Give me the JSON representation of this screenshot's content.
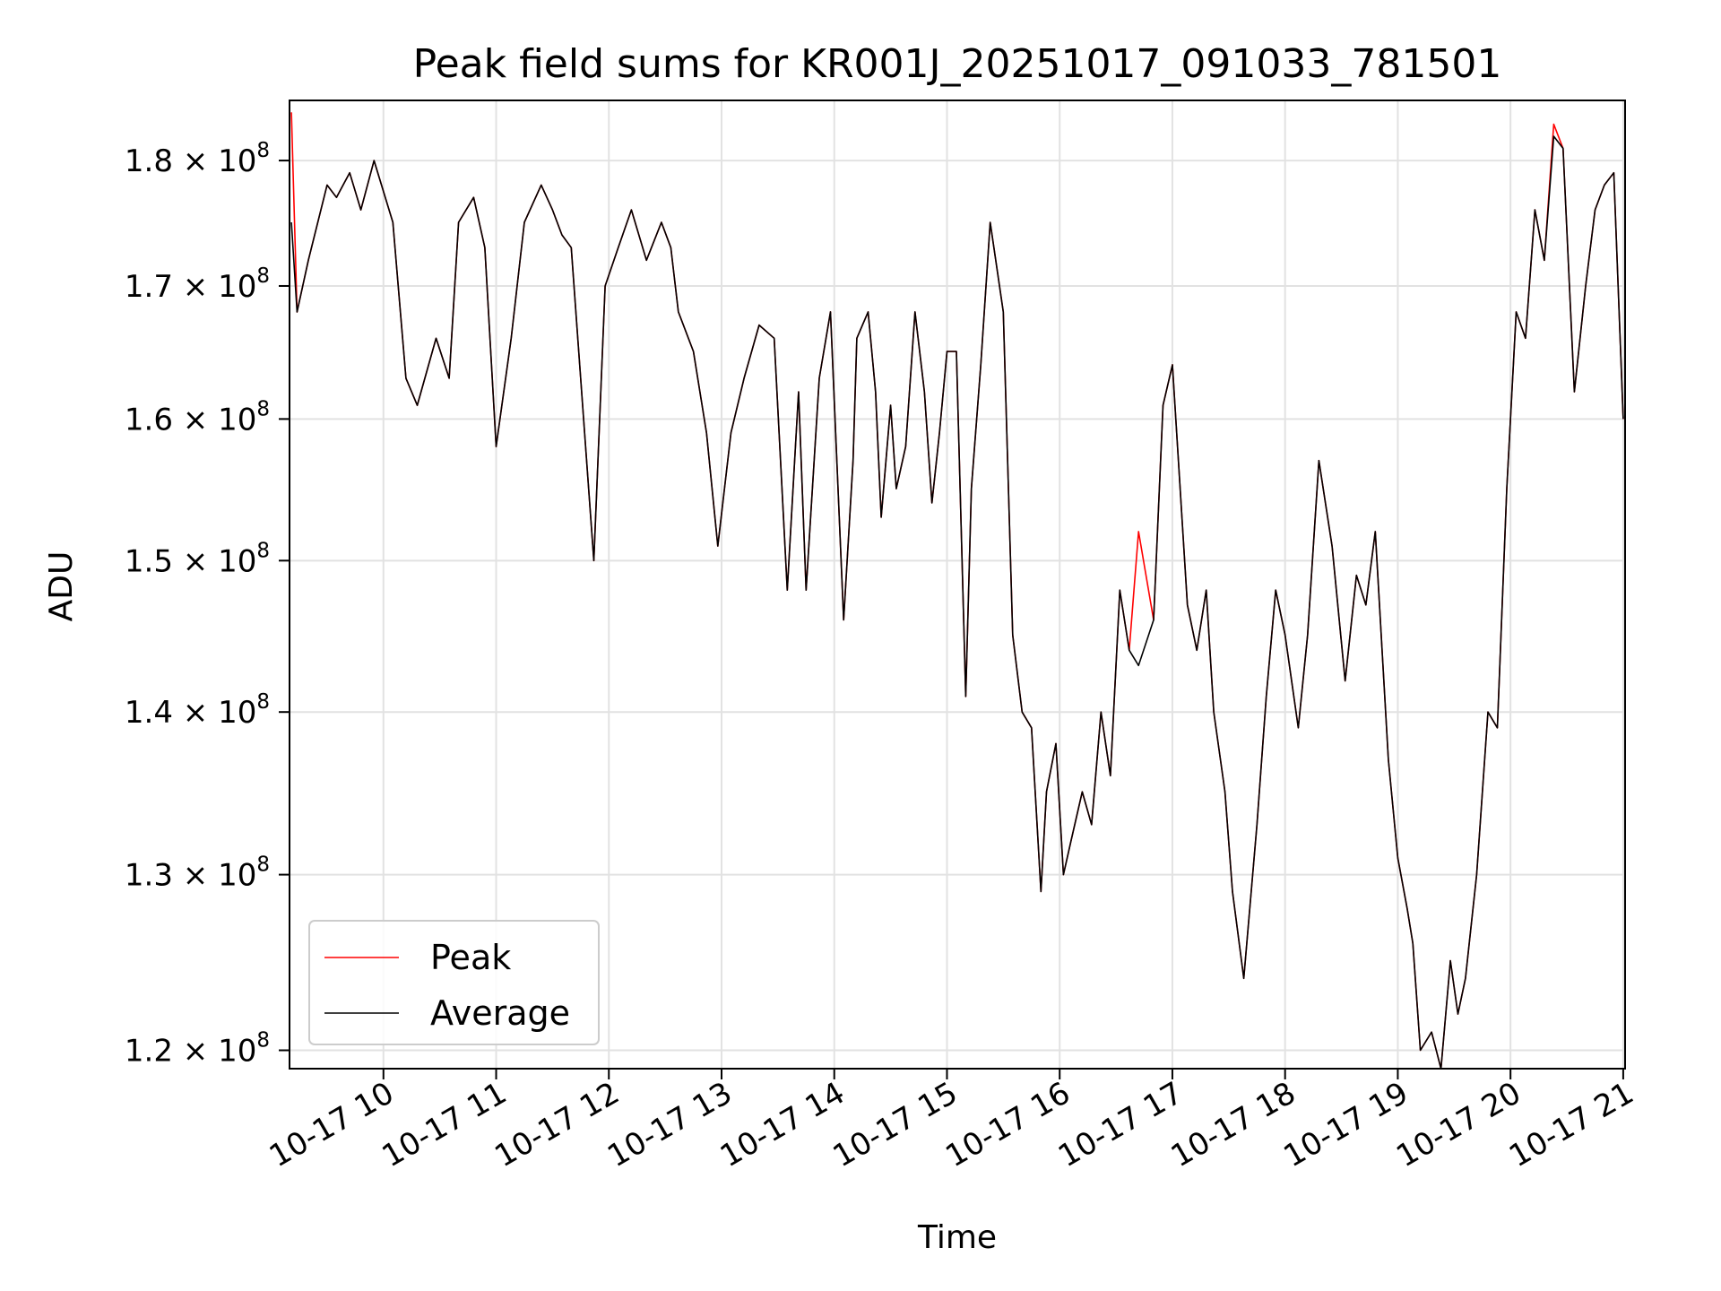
{
  "chart_data": {
    "type": "line",
    "title": "Peak field sums for KR001J_20251017_091033_781501",
    "xlabel": "Time",
    "ylabel": "ADU",
    "y_scale": "log",
    "xlim": [
      "2025-10-17T09:10",
      "2025-10-17T21:01"
    ],
    "ylim": [
      119000000,
      185000000
    ],
    "x_ticks": [
      {
        "value": "2025-10-17T10:00",
        "label": "10-17 10"
      },
      {
        "value": "2025-10-17T11:00",
        "label": "10-17 11"
      },
      {
        "value": "2025-10-17T12:00",
        "label": "10-17 12"
      },
      {
        "value": "2025-10-17T13:00",
        "label": "10-17 13"
      },
      {
        "value": "2025-10-17T14:00",
        "label": "10-17 14"
      },
      {
        "value": "2025-10-17T15:00",
        "label": "10-17 15"
      },
      {
        "value": "2025-10-17T16:00",
        "label": "10-17 16"
      },
      {
        "value": "2025-10-17T17:00",
        "label": "10-17 17"
      },
      {
        "value": "2025-10-17T18:00",
        "label": "10-17 18"
      },
      {
        "value": "2025-10-17T19:00",
        "label": "10-17 19"
      },
      {
        "value": "2025-10-17T20:00",
        "label": "10-17 20"
      },
      {
        "value": "2025-10-17T21:00",
        "label": "10-17 21"
      }
    ],
    "y_ticks": [
      {
        "value": 120000000,
        "label": "1.2 × 10",
        "exp": "8"
      },
      {
        "value": 130000000,
        "label": "1.3 × 10",
        "exp": "8"
      },
      {
        "value": 140000000,
        "label": "1.4 × 10",
        "exp": "8"
      },
      {
        "value": 150000000,
        "label": "1.5 × 10",
        "exp": "8"
      },
      {
        "value": 160000000,
        "label": "1.6 × 10",
        "exp": "8"
      },
      {
        "value": 170000000,
        "label": "1.7 × 10",
        "exp": "8"
      },
      {
        "value": 180000000,
        "label": "1.8 × 10",
        "exp": "8"
      }
    ],
    "grid": true,
    "legend": {
      "position": "lower-left"
    },
    "series": [
      {
        "name": "Peak",
        "color": "#ff0000",
        "x": [
          "09:11",
          "09:14",
          "09:20",
          "09:30",
          "09:35",
          "09:42",
          "09:48",
          "09:55",
          "10:05",
          "10:12",
          "10:18",
          "10:28",
          "10:35",
          "10:40",
          "10:48",
          "10:54",
          "11:00",
          "11:08",
          "11:15",
          "11:24",
          "11:30",
          "11:35",
          "11:40",
          "11:45",
          "11:52",
          "11:58",
          "12:05",
          "12:12",
          "12:20",
          "12:28",
          "12:33",
          "12:37",
          "12:45",
          "12:52",
          "12:58",
          "13:05",
          "13:12",
          "13:20",
          "13:28",
          "13:35",
          "13:41",
          "13:45",
          "13:52",
          "13:58",
          "14:05",
          "14:10",
          "14:12",
          "14:15",
          "14:18",
          "14:22",
          "14:25",
          "14:30",
          "14:33",
          "14:38",
          "14:43",
          "14:48",
          "14:52",
          "14:56",
          "15:00",
          "15:05",
          "15:10",
          "15:13",
          "15:18",
          "15:23",
          "15:30",
          "15:35",
          "15:40",
          "15:45",
          "15:50",
          "15:53",
          "15:58",
          "16:02",
          "16:06",
          "16:12",
          "16:17",
          "16:22",
          "16:27",
          "16:32",
          "16:37",
          "16:42",
          "16:50",
          "16:55",
          "17:00",
          "17:08",
          "17:13",
          "17:18",
          "17:22",
          "17:28",
          "17:32",
          "17:38",
          "17:45",
          "17:50",
          "17:55",
          "18:00",
          "18:07",
          "18:12",
          "18:18",
          "18:25",
          "18:32",
          "18:38",
          "18:43",
          "18:48",
          "18:55",
          "19:00",
          "19:05",
          "19:08",
          "19:12",
          "19:18",
          "19:23",
          "19:28",
          "19:32",
          "19:36",
          "19:42",
          "19:48",
          "19:53",
          "19:58",
          "20:03",
          "20:08",
          "20:13",
          "20:18",
          "20:23",
          "20:28",
          "20:34",
          "20:40",
          "20:45",
          "20:50",
          "20:55",
          "21:00"
        ],
        "values": [
          184000000,
          168000000,
          172000000,
          178000000,
          177000000,
          179000000,
          176000000,
          180000000,
          175000000,
          163000000,
          161000000,
          166000000,
          163000000,
          175000000,
          177000000,
          173000000,
          158000000,
          166000000,
          175000000,
          178000000,
          176000000,
          174000000,
          173000000,
          163000000,
          150000000,
          170000000,
          173000000,
          176000000,
          172000000,
          175000000,
          173000000,
          168000000,
          165000000,
          159000000,
          151000000,
          159000000,
          163000000,
          167000000,
          166000000,
          148000000,
          162000000,
          148000000,
          163000000,
          168000000,
          146000000,
          157000000,
          166000000,
          167000000,
          168000000,
          162000000,
          153000000,
          161000000,
          155000000,
          158000000,
          168000000,
          162000000,
          154000000,
          159000000,
          165000000,
          165000000,
          141000000,
          155000000,
          164000000,
          175000000,
          168000000,
          145000000,
          140000000,
          139000000,
          129000000,
          135000000,
          138000000,
          130000000,
          132000000,
          135000000,
          133000000,
          140000000,
          136000000,
          148000000,
          144000000,
          152000000,
          146000000,
          161000000,
          164000000,
          147000000,
          144000000,
          148000000,
          140000000,
          135000000,
          129000000,
          124000000,
          133000000,
          141000000,
          148000000,
          145000000,
          139000000,
          145000000,
          157000000,
          151000000,
          142000000,
          149000000,
          147000000,
          152000000,
          137000000,
          131000000,
          128000000,
          126000000,
          120000000,
          121000000,
          119000000,
          125000000,
          122000000,
          124000000,
          130000000,
          140000000,
          139000000,
          155000000,
          168000000,
          166000000,
          176000000,
          172000000,
          183000000,
          181000000,
          162000000,
          170000000,
          176000000,
          178000000,
          179000000,
          160000000
        ]
      },
      {
        "name": "Average",
        "color": "#000000",
        "x": [
          "09:11",
          "09:14",
          "09:20",
          "09:30",
          "09:35",
          "09:42",
          "09:48",
          "09:55",
          "10:05",
          "10:12",
          "10:18",
          "10:28",
          "10:35",
          "10:40",
          "10:48",
          "10:54",
          "11:00",
          "11:08",
          "11:15",
          "11:24",
          "11:30",
          "11:35",
          "11:40",
          "11:45",
          "11:52",
          "11:58",
          "12:05",
          "12:12",
          "12:20",
          "12:28",
          "12:33",
          "12:37",
          "12:45",
          "12:52",
          "12:58",
          "13:05",
          "13:12",
          "13:20",
          "13:28",
          "13:35",
          "13:41",
          "13:45",
          "13:52",
          "13:58",
          "14:05",
          "14:10",
          "14:12",
          "14:15",
          "14:18",
          "14:22",
          "14:25",
          "14:30",
          "14:33",
          "14:38",
          "14:43",
          "14:48",
          "14:52",
          "14:56",
          "15:00",
          "15:05",
          "15:10",
          "15:13",
          "15:18",
          "15:23",
          "15:30",
          "15:35",
          "15:40",
          "15:45",
          "15:50",
          "15:53",
          "15:58",
          "16:02",
          "16:06",
          "16:12",
          "16:17",
          "16:22",
          "16:27",
          "16:32",
          "16:37",
          "16:42",
          "16:50",
          "16:55",
          "17:00",
          "17:08",
          "17:13",
          "17:18",
          "17:22",
          "17:28",
          "17:32",
          "17:38",
          "17:45",
          "17:50",
          "17:55",
          "18:00",
          "18:07",
          "18:12",
          "18:18",
          "18:25",
          "18:32",
          "18:38",
          "18:43",
          "18:48",
          "18:55",
          "19:00",
          "19:05",
          "19:08",
          "19:12",
          "19:18",
          "19:23",
          "19:28",
          "19:32",
          "19:36",
          "19:42",
          "19:48",
          "19:53",
          "19:58",
          "20:03",
          "20:08",
          "20:13",
          "20:18",
          "20:23",
          "20:28",
          "20:34",
          "20:40",
          "20:45",
          "20:50",
          "20:55",
          "21:00"
        ],
        "values": [
          175000000,
          168000000,
          172000000,
          178000000,
          177000000,
          179000000,
          176000000,
          180000000,
          175000000,
          163000000,
          161000000,
          166000000,
          163000000,
          175000000,
          177000000,
          173000000,
          158000000,
          166000000,
          175000000,
          178000000,
          176000000,
          174000000,
          173000000,
          163000000,
          150000000,
          170000000,
          173000000,
          176000000,
          172000000,
          175000000,
          173000000,
          168000000,
          165000000,
          159000000,
          151000000,
          159000000,
          163000000,
          167000000,
          166000000,
          148000000,
          162000000,
          148000000,
          163000000,
          168000000,
          146000000,
          157000000,
          166000000,
          167000000,
          168000000,
          162000000,
          153000000,
          161000000,
          155000000,
          158000000,
          168000000,
          162000000,
          154000000,
          159000000,
          165000000,
          165000000,
          141000000,
          155000000,
          164000000,
          175000000,
          168000000,
          145000000,
          140000000,
          139000000,
          129000000,
          135000000,
          138000000,
          130000000,
          132000000,
          135000000,
          133000000,
          140000000,
          136000000,
          148000000,
          144000000,
          143000000,
          146000000,
          161000000,
          164000000,
          147000000,
          144000000,
          148000000,
          140000000,
          135000000,
          129000000,
          124000000,
          133000000,
          141000000,
          148000000,
          145000000,
          139000000,
          145000000,
          157000000,
          151000000,
          142000000,
          149000000,
          147000000,
          152000000,
          137000000,
          131000000,
          128000000,
          126000000,
          120000000,
          121000000,
          119000000,
          125000000,
          122000000,
          124000000,
          130000000,
          140000000,
          139000000,
          155000000,
          168000000,
          166000000,
          176000000,
          172000000,
          182000000,
          181000000,
          162000000,
          170000000,
          176000000,
          178000000,
          179000000,
          160000000
        ]
      }
    ]
  }
}
